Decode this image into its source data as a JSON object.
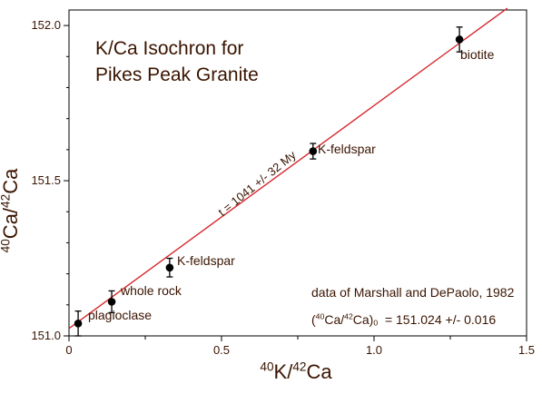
{
  "chart_data": {
    "type": "scatter",
    "title": [
      "K/Ca Isochron for",
      "Pikes Peak Granite"
    ],
    "xlabel": {
      "base1": "K/",
      "sup1": "40",
      "sup2": "42",
      "base2": "Ca"
    },
    "ylabel": {
      "base1": "Ca/",
      "sup1": "40",
      "sup2": "42",
      "base2": "Ca"
    },
    "xlim": [
      0,
      1.5
    ],
    "ylim": [
      151.0,
      152.05
    ],
    "xticks": [
      0,
      0.5,
      1.0,
      1.5
    ],
    "xtick_labels": [
      "0",
      "0.5",
      "1.0",
      "1.5"
    ],
    "yticks": [
      151.0,
      151.5,
      152.0
    ],
    "ytick_labels": [
      "151.0",
      "151.5",
      "152.0"
    ],
    "points": [
      {
        "label": "plagioclase",
        "x": 0.03,
        "y": 151.04,
        "err": 0.04
      },
      {
        "label": "whole rock",
        "x": 0.14,
        "y": 151.11,
        "err": 0.035
      },
      {
        "label": "K-feldspar",
        "x": 0.33,
        "y": 151.22,
        "err": 0.03
      },
      {
        "label": "K-feldspar",
        "x": 0.8,
        "y": 151.595,
        "err": 0.025
      },
      {
        "label": "biotite",
        "x": 1.28,
        "y": 151.955,
        "err": 0.04
      }
    ],
    "fit_line": {
      "intercept": 151.024,
      "slope": 0.718,
      "x_range": [
        0,
        1.437
      ]
    },
    "annotations": {
      "age": "t = 1041 +/- 32 My",
      "source": "data of Marshall and DePaolo, 1982",
      "initial_ratio": {
        "sup1": "40",
        "base1": "Ca/",
        "sup2": "42",
        "base2": "Ca)",
        "sub": "0",
        "value": "= 151.024 +/- 0.016"
      }
    },
    "colors": {
      "line": "#d7282f",
      "text": "#3a1400",
      "point": "#000000"
    }
  }
}
